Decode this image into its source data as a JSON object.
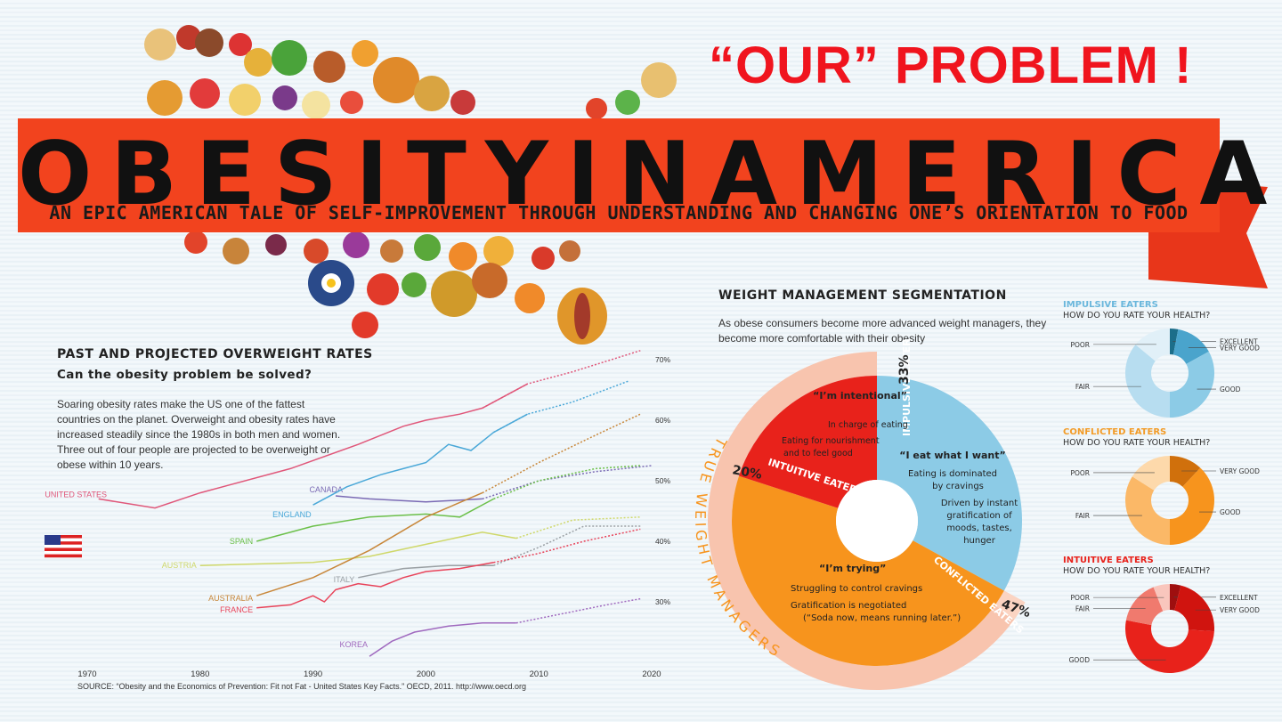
{
  "overlay": {
    "title": "“OUR” PROBLEM !"
  },
  "banner": {
    "title": "OBESITYINAMERICA",
    "subtitle": "AN EPIC AMERICAN TALE OF SELF-IMPROVEMENT THROUGH UNDERSTANDING AND CHANGING ONE’S ORIENTATION TO FOOD"
  },
  "colors": {
    "banner": "#f2431e",
    "overlay_text": "#f0141e",
    "blue": "#8ccbe6",
    "orange": "#f7941d",
    "red": "#e8221b",
    "pink": "#f8c4ae"
  },
  "chart_data": [
    {
      "type": "line",
      "title": "PAST AND PROJECTED OVERWEIGHT RATES",
      "subtitle": "Can the obesity problem be solved?",
      "description": "Soaring obesity rates make the US one of the fattest countries on the planet. Overweight and obesity rates have increased steadily since the 1980s in both men and women. Three out of four people are projected to be overweight or obese within 10 years.",
      "source": "SOURCE: “Obesity and the Economics of Prevention: Fit not Fat - United States Key Facts.” OECD, 2011. http://www.oecd.org",
      "xlabel": "",
      "ylabel": "",
      "xticks": [
        "1970",
        "1980",
        "1990",
        "2000",
        "2010",
        "2020"
      ],
      "yticks": [
        "30%",
        "40%",
        "50%",
        "60%",
        "70%"
      ],
      "xlim": [
        1970,
        2020
      ],
      "ylim": [
        28,
        72
      ],
      "grid": false,
      "projection_start": 2009,
      "series": [
        {
          "name": "UNITED STATES",
          "color": "#e0577a",
          "points": [
            [
              1971,
              47
            ],
            [
              1976,
              45.5
            ],
            [
              1980,
              48
            ],
            [
              1988,
              52
            ],
            [
              1994,
              56
            ],
            [
              1998,
              59
            ],
            [
              2000,
              60
            ],
            [
              2003,
              61
            ],
            [
              2005,
              62
            ],
            [
              2009,
              66
            ],
            [
              2013,
              68
            ],
            [
              2019,
              71.5
            ]
          ]
        },
        {
          "name": "CANADA",
          "color": "#7b6bb5",
          "points": [
            [
              1992,
              47.5
            ],
            [
              1995,
              47
            ],
            [
              2000,
              46.5
            ],
            [
              2005,
              47
            ],
            [
              2010,
              50
            ],
            [
              2015,
              51.5
            ],
            [
              2020,
              52.5
            ]
          ]
        },
        {
          "name": "ENGLAND",
          "color": "#4aa8d8",
          "points": [
            [
              1990,
              46
            ],
            [
              1993,
              49
            ],
            [
              1996,
              51
            ],
            [
              1998,
              52
            ],
            [
              2000,
              53
            ],
            [
              2002,
              56
            ],
            [
              2004,
              55
            ],
            [
              2006,
              58
            ],
            [
              2009,
              61
            ],
            [
              2013,
              63
            ],
            [
              2018,
              66.5
            ]
          ]
        },
        {
          "name": "SPAIN",
          "color": "#6cc04a",
          "points": [
            [
              1985,
              40
            ],
            [
              1990,
              42.5
            ],
            [
              1995,
              44
            ],
            [
              2000,
              44.5
            ],
            [
              2003,
              44
            ],
            [
              2006,
              47
            ],
            [
              2010,
              50
            ],
            [
              2015,
              52
            ],
            [
              2019,
              52.5
            ]
          ]
        },
        {
          "name": "AUSTRIA",
          "color": "#cfd86a",
          "points": [
            [
              1980,
              36
            ],
            [
              1990,
              36.5
            ],
            [
              1995,
              37.5
            ],
            [
              2000,
              39.5
            ],
            [
              2005,
              41.5
            ],
            [
              2008,
              40.5
            ],
            [
              2013,
              43.5
            ],
            [
              2019,
              44
            ]
          ]
        },
        {
          "name": "ITALY",
          "color": "#9aa0a4",
          "points": [
            [
              1994,
              34
            ],
            [
              1998,
              35.5
            ],
            [
              2002,
              36
            ],
            [
              2006,
              36
            ],
            [
              2010,
              39
            ],
            [
              2014,
              42.5
            ],
            [
              2019,
              42.5
            ]
          ]
        },
        {
          "name": "AUSTRALIA",
          "color": "#c8873a",
          "points": [
            [
              1985,
              31
            ],
            [
              1990,
              34
            ],
            [
              1995,
              38.5
            ],
            [
              2000,
              44
            ],
            [
              2005,
              48
            ],
            [
              2010,
              53
            ],
            [
              2015,
              57.5
            ],
            [
              2019,
              61
            ]
          ]
        },
        {
          "name": "FRANCE",
          "color": "#e8445a",
          "points": [
            [
              1985,
              29
            ],
            [
              1988,
              29.5
            ],
            [
              1990,
              31
            ],
            [
              1991,
              30
            ],
            [
              1992,
              32
            ],
            [
              1994,
              33
            ],
            [
              1996,
              32.5
            ],
            [
              1998,
              34
            ],
            [
              2000,
              35
            ],
            [
              2003,
              35.5
            ],
            [
              2006,
              36.5
            ],
            [
              2010,
              38
            ],
            [
              2014,
              40
            ],
            [
              2019,
              42
            ]
          ]
        },
        {
          "name": "KOREA",
          "color": "#a06abf",
          "points": [
            [
              1995,
              21
            ],
            [
              1997,
              23.5
            ],
            [
              1999,
              25
            ],
            [
              2002,
              26
            ],
            [
              2005,
              26.5
            ],
            [
              2008,
              26.5
            ],
            [
              2012,
              28
            ],
            [
              2016,
              29.5
            ],
            [
              2019,
              30.5
            ]
          ]
        }
      ]
    },
    {
      "type": "pie",
      "title": "WEIGHT MANAGEMENT SEGMENTATION",
      "description": "As obese consumers become more advanced weight managers, they become more comfortable with their obesity",
      "outer_label": "TRUE WEIGHT MANAGERS",
      "segments": [
        {
          "name": "IMPULSIVE EATERS",
          "value": 33,
          "label": "33%",
          "color": "#8ccbe6",
          "quote": "“I eat what I want”",
          "lines": [
            "Eating is dominated",
            "by cravings",
            "Driven by instant",
            "gratification of",
            "moods, tastes,",
            "hunger"
          ]
        },
        {
          "name": "CONFLICTED EATERS",
          "value": 47,
          "label": "47%",
          "color": "#f7941d",
          "quote": "“I’m trying”",
          "lines": [
            "Struggling to control cravings",
            "Gratification is negotiated",
            "(“Soda now, means running later.”)"
          ]
        },
        {
          "name": "INTUITIVE EATERS",
          "value": 20,
          "label": "20%",
          "color": "#e8221b",
          "quote": "“I’m intentional”",
          "lines": [
            "In charge of eating",
            "Eating for nourishment",
            "and to feel good"
          ]
        }
      ]
    },
    {
      "type": "pie",
      "title": "IMPULSIVE EATERS",
      "question": "HOW DO YOU RATE YOUR HEALTH?",
      "categories": [
        "EXCELLENT",
        "VERY GOOD",
        "GOOD",
        "FAIR",
        "POOR"
      ],
      "values": [
        3,
        14,
        33,
        36,
        14
      ],
      "colors": [
        "#1c6e8a",
        "#4aa4cc",
        "#8ccbe6",
        "#b7ddf0",
        "#e1f0f8"
      ]
    },
    {
      "type": "pie",
      "title": "CONFLICTED EATERS",
      "question": "HOW DO YOU RATE YOUR HEALTH?",
      "categories": [
        "VERY GOOD",
        "GOOD",
        "FAIR",
        "POOR"
      ],
      "values": [
        12,
        38,
        34,
        16
      ],
      "colors": [
        "#d0700c",
        "#f7941d",
        "#fbb867",
        "#fdd9ab"
      ]
    },
    {
      "type": "pie",
      "title": "INTUITIVE EATERS",
      "question": "HOW DO YOU RATE YOUR HEALTH?",
      "categories": [
        "EXCELLENT",
        "VERY GOOD",
        "GOOD",
        "FAIR",
        "POOR"
      ],
      "values": [
        4,
        22,
        52,
        16,
        6
      ],
      "colors": [
        "#9e0f0f",
        "#d0140f",
        "#e8221b",
        "#f07a6e",
        "#f9c6bd"
      ]
    }
  ]
}
